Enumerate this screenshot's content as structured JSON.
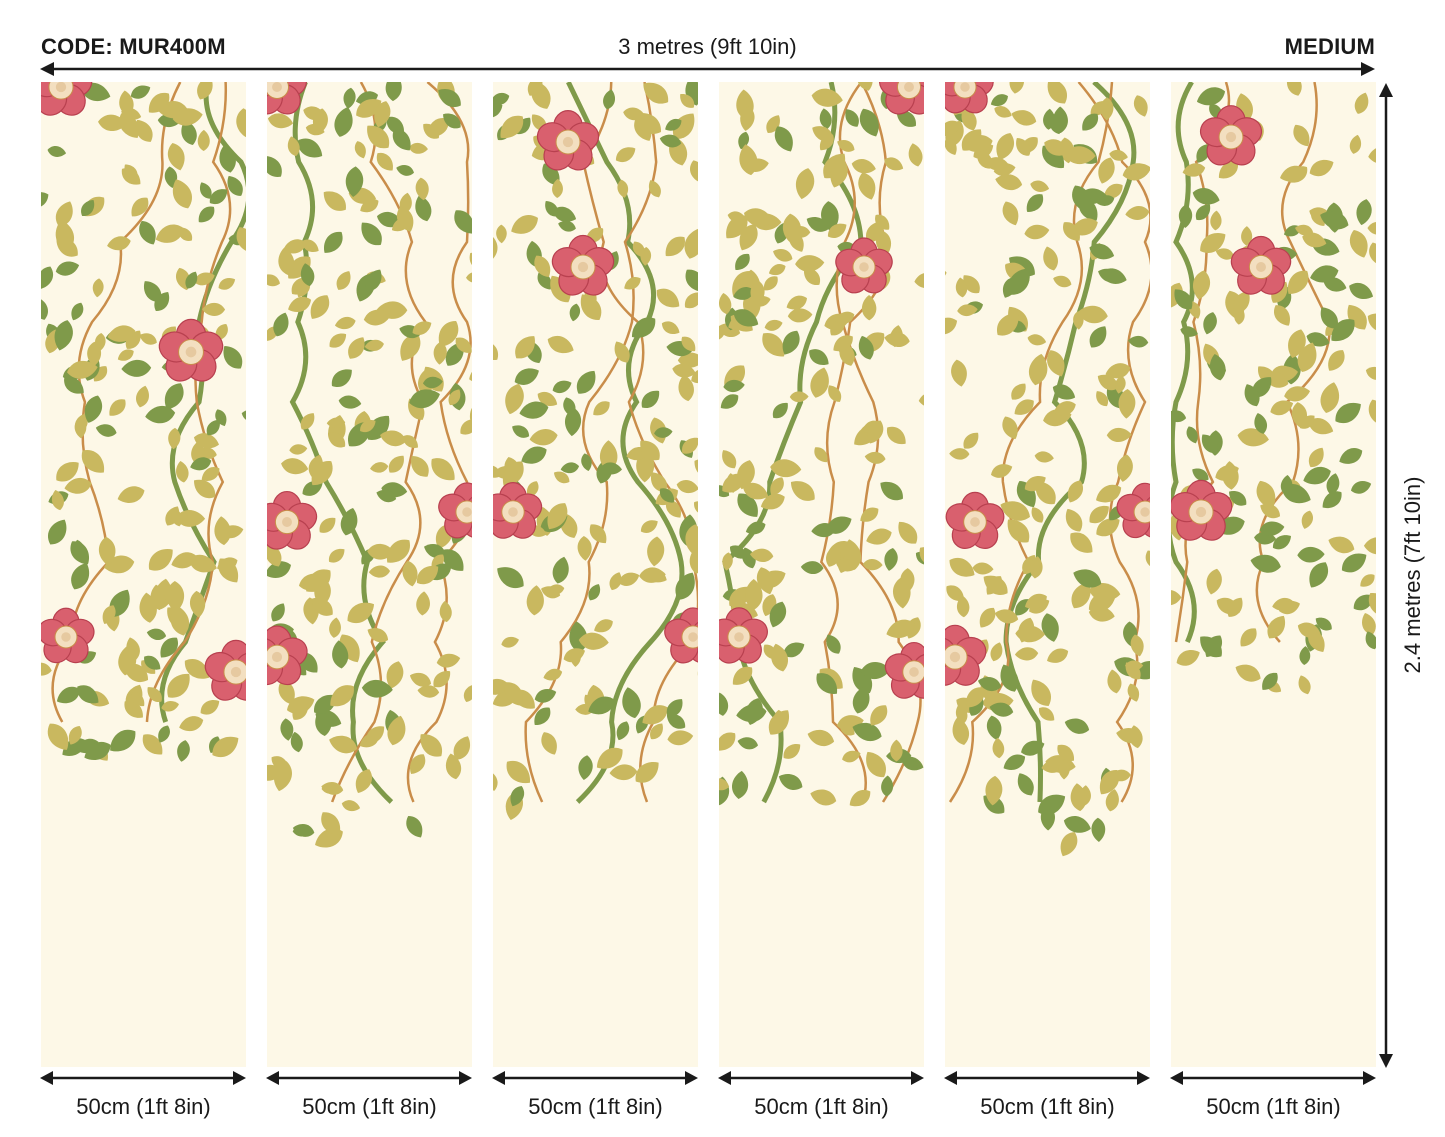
{
  "header": {
    "code_label": "CODE: MUR400M",
    "total_width_label": "3 metres (9ft 10in)",
    "size_label": "MEDIUM"
  },
  "height_label": "2.4 metres (7ft 10in)",
  "panels": [
    {
      "width_label": "50cm (1ft 8in)"
    },
    {
      "width_label": "50cm (1ft 8in)"
    },
    {
      "width_label": "50cm (1ft 8in)"
    },
    {
      "width_label": "50cm (1ft 8in)"
    },
    {
      "width_label": "50cm (1ft 8in)"
    },
    {
      "width_label": "50cm (1ft 8in)"
    }
  ],
  "colors": {
    "background": "#fdf8e7",
    "leaf_olive": "#c9b85f",
    "leaf_green": "#7f9a4a",
    "stem_brown": "#c98d4a",
    "flower_pink": "#d9606e",
    "flower_center": "#f3dfc0"
  }
}
